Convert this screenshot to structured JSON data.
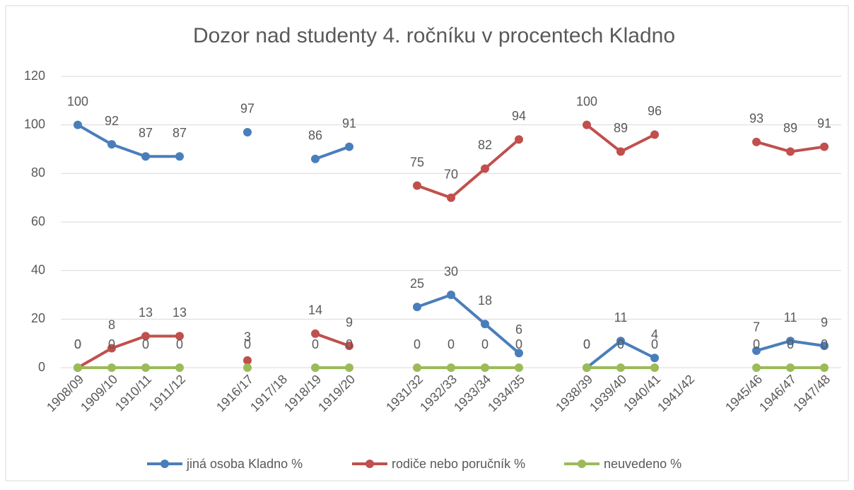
{
  "chart_data": {
    "type": "line",
    "title": "Dozor nad studenty 4. ročníku v procentech Kladno",
    "categories": [
      "1908/09",
      "1909/10",
      "1910/11",
      "1911/12",
      null,
      "1916/17",
      "1917/18",
      "1918/19",
      "1919/20",
      null,
      "1931/32",
      "1932/33",
      "1933/34",
      "1934/35",
      null,
      "1938/39",
      "1939/40",
      "1940/41",
      "1941/42",
      null,
      "1945/46",
      "1946/47",
      "1947/48"
    ],
    "series": [
      {
        "name": "jiná osoba Kladno %",
        "color": "#4a7ebb",
        "values": [
          100,
          92,
          87,
          87,
          null,
          97,
          null,
          86,
          91,
          null,
          25,
          30,
          18,
          6,
          null,
          0,
          11,
          4,
          null,
          null,
          7,
          11,
          9
        ]
      },
      {
        "name": "rodiče nebo poručník %",
        "color": "#c0504d",
        "values": [
          0,
          8,
          13,
          13,
          null,
          3,
          null,
          14,
          9,
          null,
          75,
          70,
          82,
          94,
          null,
          100,
          89,
          96,
          null,
          null,
          93,
          89,
          91
        ]
      },
      {
        "name": "neuvedeno %",
        "color": "#9bbb59",
        "values": [
          0,
          0,
          0,
          0,
          null,
          0,
          null,
          0,
          0,
          null,
          0,
          0,
          0,
          0,
          null,
          0,
          0,
          0,
          null,
          null,
          0,
          0,
          0
        ]
      }
    ],
    "ylim": [
      0,
      120
    ],
    "yticks": [
      0,
      20,
      40,
      60,
      80,
      100,
      120
    ],
    "grid": true,
    "legend": "bottom"
  }
}
